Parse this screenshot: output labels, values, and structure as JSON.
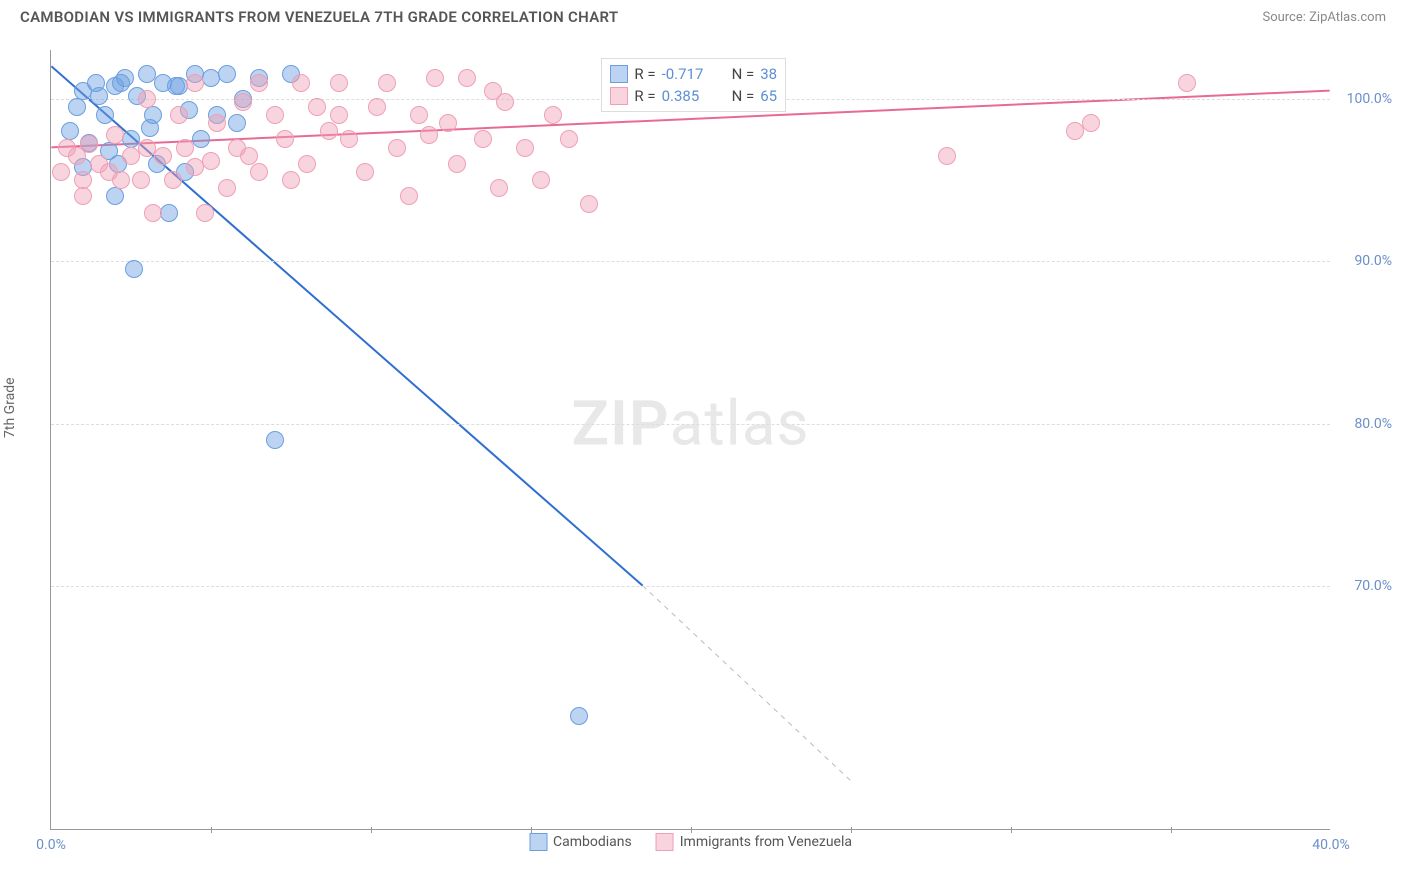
{
  "meta": {
    "title": "CAMBODIAN VS IMMIGRANTS FROM VENEZUELA 7TH GRADE CORRELATION CHART",
    "source": "Source: ZipAtlas.com",
    "y_axis_label": "7th Grade",
    "watermark_bold": "ZIP",
    "watermark_light": "atlas"
  },
  "chart": {
    "type": "scatter",
    "background_color": "#ffffff",
    "grid_color": "#dddddd",
    "axis_color": "#999999",
    "x_range": [
      0,
      40
    ],
    "y_range": [
      55,
      103
    ],
    "y_ticks": [
      70,
      80,
      90,
      100
    ],
    "y_tick_labels": [
      "70.0%",
      "80.0%",
      "90.0%",
      "100.0%"
    ],
    "x_ticks": [
      0,
      40
    ],
    "x_tick_labels": [
      "0.0%",
      "40.0%"
    ],
    "x_minor_ticks": [
      5,
      10,
      15,
      20,
      25,
      30,
      35
    ],
    "point_radius": 9,
    "point_opacity": 0.45,
    "series": [
      {
        "name": "Cambodians",
        "color": "#6b9fe0",
        "border": "#4a7fc8",
        "marker_fill": "rgba(107,159,224,0.45)",
        "marker_border": "#6b9fe0",
        "r_label": "R =",
        "r_value": "-0.717",
        "n_label": "N =",
        "n_value": "38",
        "trend": {
          "x1": 0,
          "y1": 102,
          "x2": 18.5,
          "y2": 70,
          "dash_x2": 25,
          "dash_y2": 58,
          "color": "#2f6fd0",
          "width": 2
        },
        "points": [
          [
            1.0,
            100.5
          ],
          [
            1.4,
            101.0
          ],
          [
            0.8,
            99.5
          ],
          [
            1.7,
            99.0
          ],
          [
            2.0,
            100.8
          ],
          [
            2.3,
            101.3
          ],
          [
            2.7,
            100.2
          ],
          [
            3.0,
            101.5
          ],
          [
            3.2,
            99.0
          ],
          [
            3.5,
            101.0
          ],
          [
            4.0,
            100.8
          ],
          [
            4.5,
            101.5
          ],
          [
            0.6,
            98.0
          ],
          [
            1.2,
            97.3
          ],
          [
            1.8,
            96.8
          ],
          [
            2.1,
            96.0
          ],
          [
            2.5,
            97.5
          ],
          [
            3.3,
            96.0
          ],
          [
            4.2,
            95.5
          ],
          [
            1.0,
            95.8
          ],
          [
            2.0,
            94.0
          ],
          [
            2.6,
            89.5
          ],
          [
            3.7,
            93.0
          ],
          [
            5.0,
            101.3
          ],
          [
            5.5,
            101.5
          ],
          [
            6.5,
            101.3
          ],
          [
            7.5,
            101.5
          ],
          [
            5.2,
            99.0
          ],
          [
            6.0,
            100.0
          ],
          [
            4.7,
            97.5
          ],
          [
            3.9,
            100.8
          ],
          [
            1.5,
            100.2
          ],
          [
            4.3,
            99.3
          ],
          [
            5.8,
            98.5
          ],
          [
            3.1,
            98.2
          ],
          [
            7.0,
            79.0
          ],
          [
            16.5,
            62.0
          ],
          [
            2.2,
            101.0
          ]
        ]
      },
      {
        "name": "Immigrants from Venezuela",
        "color": "#f09fb5",
        "border": "#e07a9a",
        "marker_fill": "rgba(240,159,181,0.45)",
        "marker_border": "#f09fb5",
        "r_label": "R =",
        "r_value": "0.385",
        "n_label": "N =",
        "n_value": "65",
        "trend": {
          "x1": 0,
          "y1": 97,
          "x2": 40,
          "y2": 100.5,
          "color": "#e86a94",
          "width": 2
        },
        "points": [
          [
            0.5,
            97.0
          ],
          [
            0.8,
            96.5
          ],
          [
            1.0,
            95.0
          ],
          [
            1.2,
            97.2
          ],
          [
            1.5,
            96.0
          ],
          [
            1.8,
            95.5
          ],
          [
            2.0,
            97.8
          ],
          [
            2.2,
            95.0
          ],
          [
            2.5,
            96.5
          ],
          [
            2.8,
            95.0
          ],
          [
            3.0,
            97.0
          ],
          [
            3.2,
            93.0
          ],
          [
            3.5,
            96.5
          ],
          [
            3.8,
            95.0
          ],
          [
            4.0,
            99.0
          ],
          [
            4.2,
            97.0
          ],
          [
            4.5,
            95.8
          ],
          [
            4.8,
            93.0
          ],
          [
            5.0,
            96.2
          ],
          [
            5.2,
            98.5
          ],
          [
            5.5,
            94.5
          ],
          [
            5.8,
            97.0
          ],
          [
            6.0,
            99.8
          ],
          [
            6.2,
            96.5
          ],
          [
            6.5,
            95.5
          ],
          [
            7.0,
            99.0
          ],
          [
            7.3,
            97.5
          ],
          [
            7.8,
            101.0
          ],
          [
            8.0,
            96.0
          ],
          [
            8.3,
            99.5
          ],
          [
            8.7,
            98.0
          ],
          [
            9.0,
            101.0
          ],
          [
            9.3,
            97.5
          ],
          [
            9.8,
            95.5
          ],
          [
            10.2,
            99.5
          ],
          [
            10.5,
            101.0
          ],
          [
            10.8,
            97.0
          ],
          [
            11.2,
            94.0
          ],
          [
            11.5,
            99.0
          ],
          [
            12.0,
            101.3
          ],
          [
            12.4,
            98.5
          ],
          [
            12.7,
            96.0
          ],
          [
            13.0,
            101.3
          ],
          [
            13.5,
            97.5
          ],
          [
            14.0,
            94.5
          ],
          [
            14.2,
            99.8
          ],
          [
            14.8,
            97.0
          ],
          [
            15.3,
            95.0
          ],
          [
            15.7,
            99.0
          ],
          [
            16.2,
            97.5
          ],
          [
            16.8,
            93.5
          ],
          [
            17.5,
            100.5
          ],
          [
            7.5,
            95.0
          ],
          [
            0.3,
            95.5
          ],
          [
            1.0,
            94.0
          ],
          [
            3.0,
            100.0
          ],
          [
            35.5,
            101.0
          ],
          [
            32.0,
            98.0
          ],
          [
            32.5,
            98.5
          ],
          [
            28.0,
            96.5
          ],
          [
            9.0,
            99.0
          ],
          [
            6.5,
            101.0
          ],
          [
            11.8,
            97.8
          ],
          [
            13.8,
            100.5
          ],
          [
            4.5,
            101.0
          ]
        ]
      }
    ],
    "stats_box": {
      "left_pct": 43,
      "top_pct": 1
    },
    "legend_pos": "bottom-center"
  }
}
